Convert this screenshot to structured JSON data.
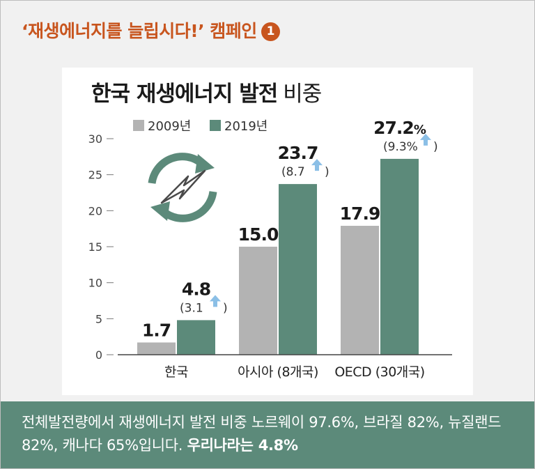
{
  "campaign": {
    "title": "‘재생에너지를 늘립시다!’ 캠페인",
    "badge": "1"
  },
  "chart_data": {
    "type": "bar",
    "title_bold": "한국 재생에너지 발전",
    "title_light": "비중",
    "categories": [
      "한국",
      "아시아 (8개국)",
      "OECD (30개국)"
    ],
    "series": [
      {
        "name": "2009년",
        "values": [
          1.7,
          15.0,
          17.9
        ],
        "labels": [
          "1.7",
          "15.0",
          "17.9"
        ],
        "color": "#b3b3b3"
      },
      {
        "name": "2019년",
        "values": [
          4.8,
          23.7,
          27.2
        ],
        "labels": [
          "4.8",
          "23.7",
          "27.2"
        ],
        "color": "#5c8a7a"
      }
    ],
    "increase_labels": [
      "(3.1",
      "(8.7",
      "(9.3%"
    ],
    "unit_suffix": [
      "",
      "",
      "%"
    ],
    "ylim": [
      0,
      30
    ],
    "yticks": [
      "0",
      "5",
      "10",
      "15",
      "20",
      "25",
      "30"
    ],
    "legend": "top-left",
    "grid": false,
    "arrow_color": "#8bbfe6"
  },
  "footer": {
    "text": "전체발전량에서 재생에너지 발전 비중 노르웨이 97.6%, 브라질 82%, 뉴질랜드 82%, 캐나다 65%입니다.",
    "highlight": "우리나라는 4.8%"
  }
}
